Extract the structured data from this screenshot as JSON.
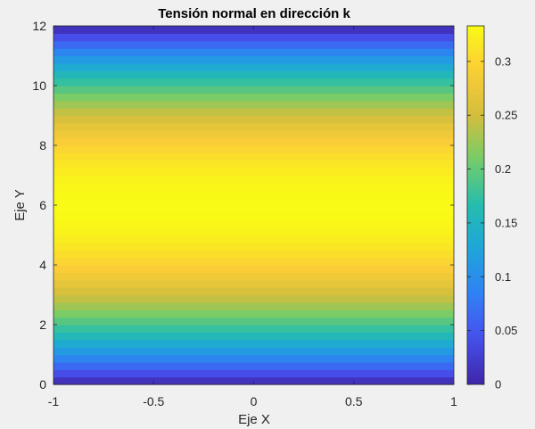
{
  "chart_data": {
    "type": "heatmap",
    "title": "Tensión normal en dirección k",
    "xlabel": "Eje X",
    "ylabel": "Eje Y",
    "xlim": [
      -1,
      1
    ],
    "ylim": [
      0,
      12
    ],
    "xticks": [
      -1,
      -0.5,
      0,
      0.5,
      1
    ],
    "xtick_labels": [
      "-1",
      "-0.5",
      "0",
      "0.5",
      "1"
    ],
    "yticks": [
      0,
      2,
      4,
      6,
      8,
      10,
      12
    ],
    "ytick_labels": [
      "0",
      "2",
      "4",
      "6",
      "8",
      "10",
      "12"
    ],
    "colorbar": {
      "limits": [
        0,
        0.333
      ],
      "ticks": [
        0,
        0.05,
        0.1,
        0.15,
        0.2,
        0.25,
        0.3
      ],
      "tick_labels": [
        "0",
        "0.05",
        "0.1",
        "0.15",
        "0.2",
        "0.25",
        "0.3"
      ],
      "colormap": "parula"
    },
    "field": {
      "description_formula": "value = 0.333 * (1 - ((y - 6) / 6)^2), constant along x",
      "y": [
        0,
        0.5,
        1,
        1.5,
        2,
        2.5,
        3,
        3.5,
        4,
        4.5,
        5,
        5.5,
        6,
        6.5,
        7,
        7.5,
        8,
        8.5,
        9,
        9.5,
        10,
        10.5,
        11,
        11.5,
        12
      ],
      "values": [
        0,
        0.0531,
        0.1018,
        0.1457,
        0.185,
        0.2197,
        0.2498,
        0.2752,
        0.296,
        0.3122,
        0.3238,
        0.3307,
        0.333,
        0.3307,
        0.3238,
        0.3122,
        0.296,
        0.2752,
        0.2498,
        0.2197,
        0.185,
        0.1457,
        0.1018,
        0.0531,
        0
      ]
    },
    "grid": false
  }
}
